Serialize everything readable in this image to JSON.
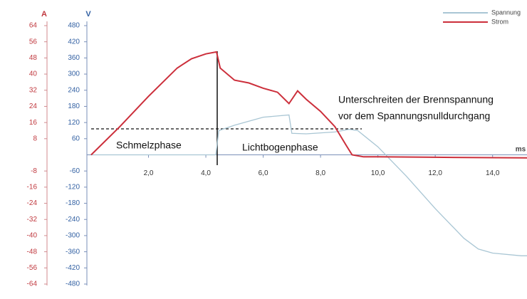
{
  "chart_data": {
    "type": "line",
    "y_label": "V",
    "y2_label": "A",
    "x_label": "ms",
    "xlim": [
      0,
      15.2
    ],
    "xticks": [
      {
        "value": 2,
        "label": "2,0"
      },
      {
        "value": 4,
        "label": "4,0"
      },
      {
        "value": 6,
        "label": "6,0"
      },
      {
        "value": 8,
        "label": "8,0"
      },
      {
        "value": 10,
        "label": "10,0"
      },
      {
        "value": 12,
        "label": "12,0"
      },
      {
        "value": 14,
        "label": "14,0"
      }
    ],
    "ylim": [
      -480,
      480
    ],
    "yticks": [
      480,
      420,
      360,
      300,
      240,
      180,
      120,
      60,
      -60,
      -120,
      -180,
      -240,
      -300,
      -360,
      -420,
      -480
    ],
    "y2lim": [
      -64,
      64
    ],
    "y2ticks": [
      64,
      56,
      48,
      40,
      32,
      24,
      16,
      8,
      -8,
      -16,
      -24,
      -32,
      -40,
      -48,
      -56,
      -64
    ],
    "legend": "top-right",
    "annotations": [
      "Schmelzphase",
      "Lichtbogenphase",
      "Unterschreiten der Brennspannung",
      "vor dem Spannungsnulldurchgang"
    ],
    "series": [
      {
        "name": "Spannung",
        "color": "#a9c6d4",
        "x": [
          0,
          4.35,
          4.45,
          5,
          6,
          6.9,
          7.0,
          7.5,
          8.5,
          9.0,
          9.3,
          10,
          11,
          12,
          13,
          13.5,
          14,
          15,
          15.2
        ],
        "values": [
          0,
          0,
          90,
          110,
          140,
          148,
          80,
          78,
          85,
          95,
          90,
          30,
          -80,
          -200,
          -310,
          -350,
          -365,
          -375,
          -375
        ]
      },
      {
        "name": "Strom",
        "color": "#cc2f3b",
        "axis": "y2",
        "x": [
          0,
          1,
          2,
          3,
          3.5,
          4,
          4.37,
          4.5,
          5,
          5.5,
          6,
          6.5,
          6.9,
          7.2,
          7.5,
          8,
          8.5,
          8.9,
          9.1,
          9.5,
          10,
          12,
          15.2
        ],
        "values": [
          0,
          14,
          29,
          43,
          47.6,
          50,
          51,
          43,
          37,
          35.6,
          33,
          31,
          25.4,
          31.7,
          27.5,
          21.5,
          14,
          4.6,
          0,
          -1,
          -1,
          -1.2,
          -1.5
        ]
      }
    ]
  }
}
